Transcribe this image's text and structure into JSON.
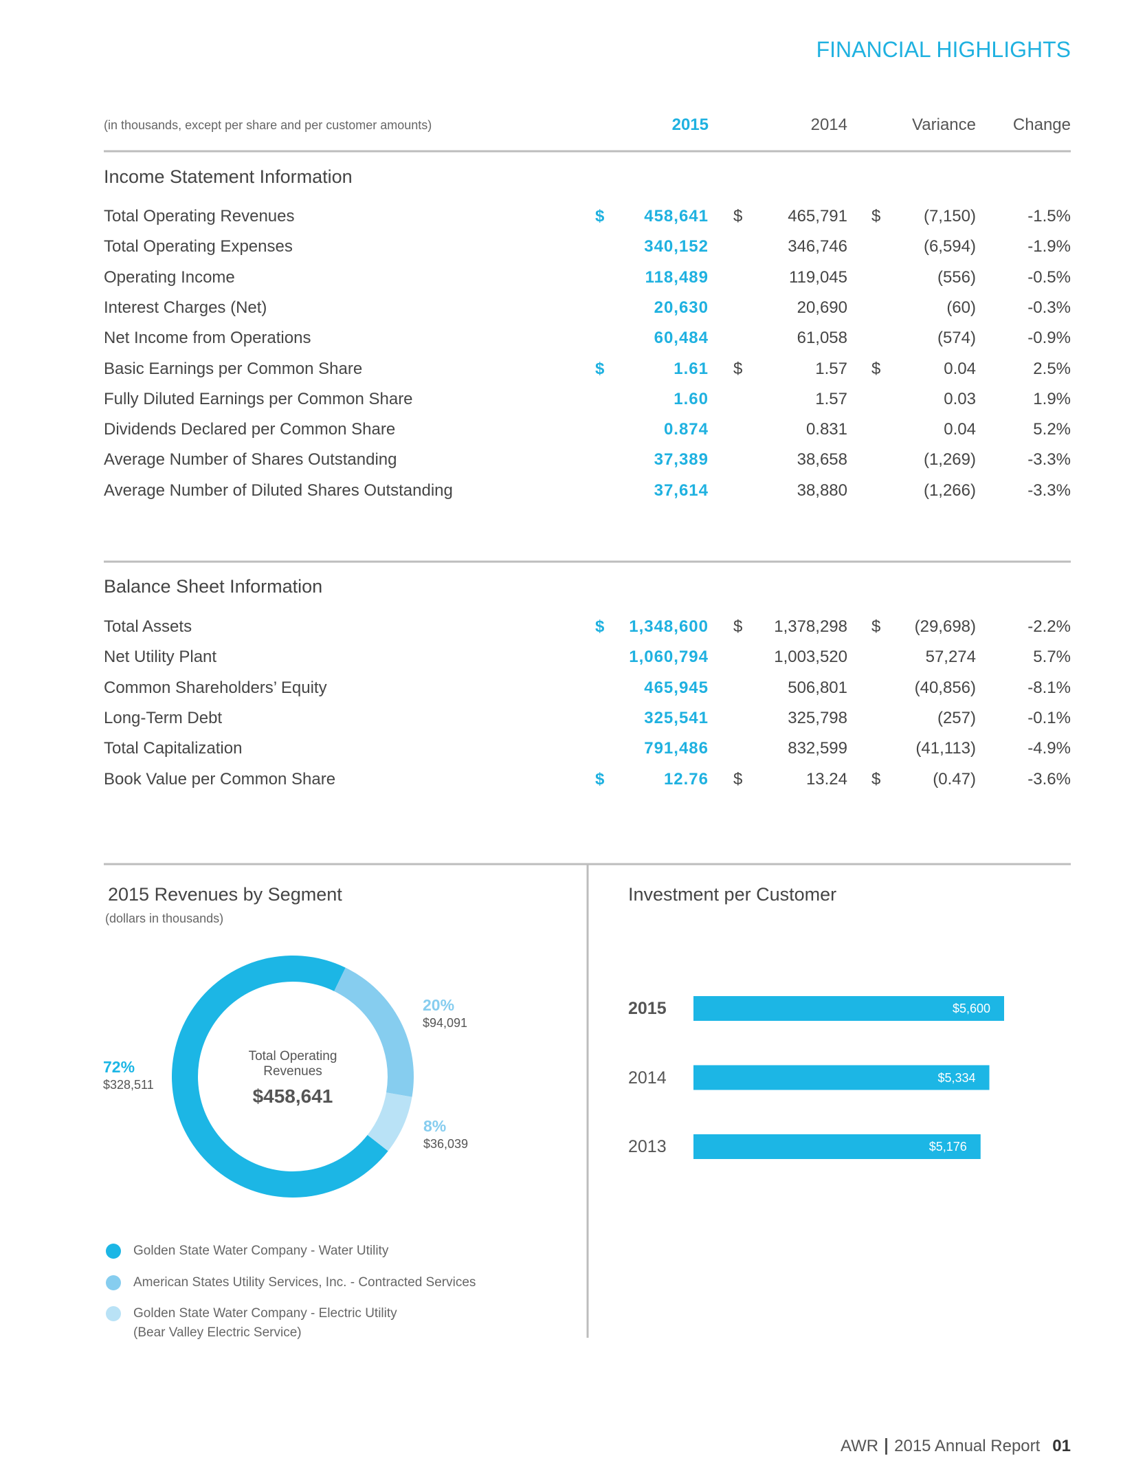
{
  "header": {
    "title": "FINANCIAL HIGHLIGHTS"
  },
  "table": {
    "note": "(in thousands, except per share and per customer amounts)",
    "columns": [
      "2015",
      "2014",
      "Variance",
      "Change"
    ],
    "currency_sign": "$",
    "sections": [
      {
        "title": "Income Statement Information",
        "rows": [
          {
            "label": "Total Operating Revenues",
            "cells": [
              "458,641",
              "465,791",
              "(7,150)",
              "-1.5%"
            ],
            "dollar": true
          },
          {
            "label": "Total Operating Expenses",
            "cells": [
              "340,152",
              "346,746",
              "(6,594)",
              "-1.9%"
            ]
          },
          {
            "label": "Operating Income",
            "cells": [
              "118,489",
              "119,045",
              "(556)",
              "-0.5%"
            ]
          },
          {
            "label": "Interest Charges (Net)",
            "cells": [
              "20,630",
              "20,690",
              "(60)",
              "-0.3%"
            ]
          },
          {
            "label": "Net Income from Operations",
            "cells": [
              "60,484",
              "61,058",
              "(574)",
              "-0.9%"
            ]
          },
          {
            "label": "Basic Earnings per Common Share",
            "cells": [
              "1.61",
              "1.57",
              "0.04",
              "2.5%"
            ],
            "dollar": true
          },
          {
            "label": "Fully Diluted Earnings per Common Share",
            "cells": [
              "1.60",
              "1.57",
              "0.03",
              "1.9%"
            ]
          },
          {
            "label": "Dividends Declared per Common Share",
            "cells": [
              "0.874",
              "0.831",
              "0.04",
              "5.2%"
            ]
          },
          {
            "label": "Average Number of Shares Outstanding",
            "cells": [
              "37,389",
              "38,658",
              "(1,269)",
              "-3.3%"
            ]
          },
          {
            "label": "Average Number of Diluted Shares Outstanding",
            "cells": [
              "37,614",
              "38,880",
              "(1,266)",
              "-3.3%"
            ]
          }
        ]
      },
      {
        "title": "Balance Sheet Information",
        "rows": [
          {
            "label": "Total Assets",
            "cells": [
              "1,348,600",
              "1,378,298",
              "(29,698)",
              "-2.2%"
            ],
            "dollar": true
          },
          {
            "label": "Net Utility Plant",
            "cells": [
              "1,060,794",
              "1,003,520",
              "57,274",
              "5.7%"
            ]
          },
          {
            "label": "Common Shareholders’ Equity",
            "cells": [
              "465,945",
              "506,801",
              "(40,856)",
              "-8.1%"
            ]
          },
          {
            "label": "Long-Term Debt",
            "cells": [
              "325,541",
              "325,798",
              "(257)",
              "-0.1%"
            ]
          },
          {
            "label": "Total Capitalization",
            "cells": [
              "791,486",
              "832,599",
              "(41,113)",
              "-4.9%"
            ]
          },
          {
            "label": "Book Value per Common Share",
            "cells": [
              "12.76",
              "13.24",
              "(0.47)",
              "-3.6%"
            ],
            "dollar": true
          }
        ]
      }
    ]
  },
  "chart_data": [
    {
      "type": "pie",
      "title": "2015 Revenues by Segment",
      "subtitle": "(dollars in thousands)",
      "center_label": "Total Operating Revenues",
      "center_value": "$458,641",
      "categories": [
        "Golden State Water Company - Water Utility",
        "American States Utility Services, Inc. - Contracted Services",
        "Golden State Water Company - Electric Utility"
      ],
      "notes": [
        null,
        null,
        "(Bear Valley Electric Service)"
      ],
      "values": [
        328511,
        94091,
        36039
      ],
      "value_labels": [
        "$328,511",
        "$94,091",
        "$36,039"
      ],
      "percent_labels": [
        "72%",
        "20%",
        "8%"
      ],
      "colors": [
        "#1cb6e5",
        "#86cdef",
        "#b9e2f6"
      ]
    },
    {
      "type": "bar",
      "title": "Investment per Customer",
      "orientation": "horizontal",
      "categories": [
        "2015",
        "2014",
        "2013"
      ],
      "values": [
        5600,
        5334,
        5176
      ],
      "value_labels": [
        "$5,600",
        "$5,334",
        "$5,176"
      ],
      "color": "#1cb6e5"
    }
  ],
  "footer": {
    "company": "AWR",
    "report": "2015 Annual Report",
    "page": "01"
  }
}
